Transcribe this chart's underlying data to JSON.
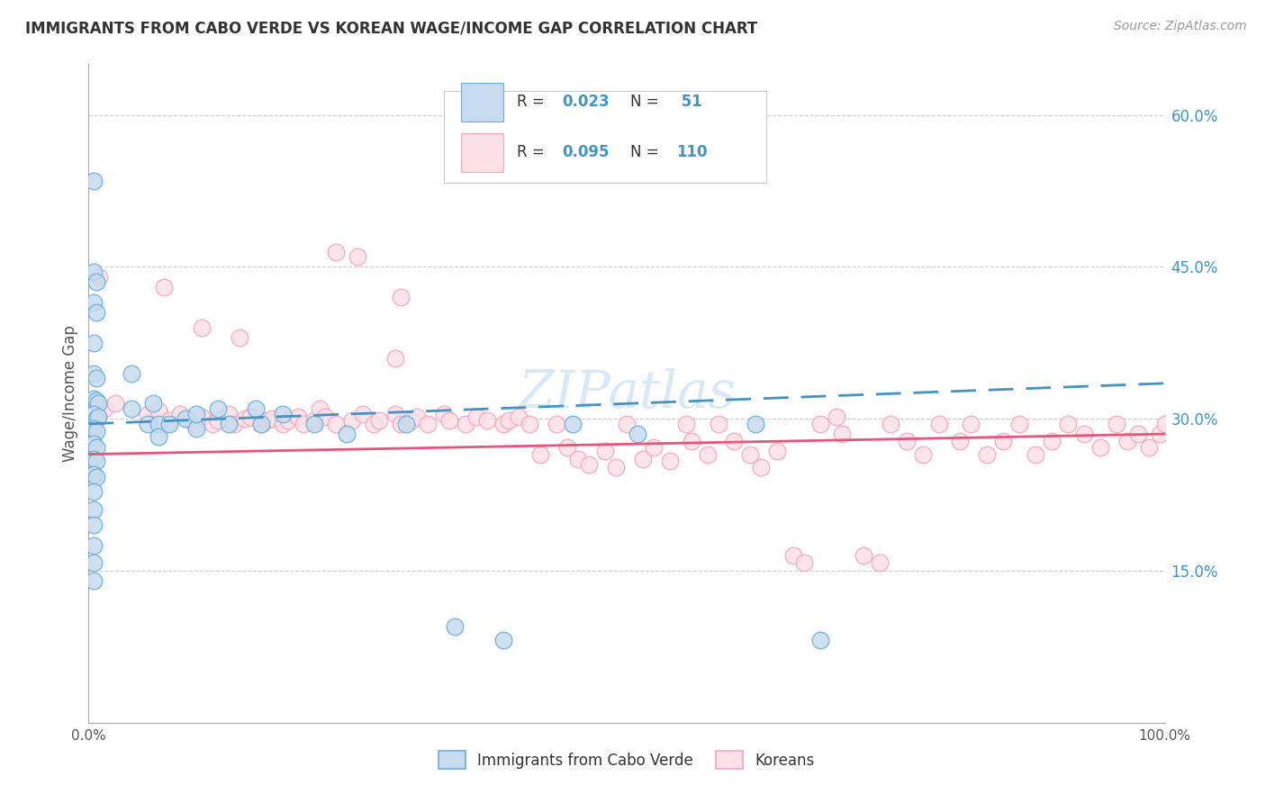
{
  "title": "IMMIGRANTS FROM CABO VERDE VS KOREAN WAGE/INCOME GAP CORRELATION CHART",
  "source": "Source: ZipAtlas.com",
  "ylabel": "Wage/Income Gap",
  "x_min": 0.0,
  "x_max": 1.0,
  "y_min": 0.0,
  "y_max": 0.65,
  "x_tick_labels": [
    "0.0%",
    "100.0%"
  ],
  "y_tick_labels_right": [
    "60.0%",
    "45.0%",
    "30.0%",
    "15.0%"
  ],
  "y_tick_values_right": [
    0.6,
    0.45,
    0.3,
    0.15
  ],
  "legend_label1": "Immigrants from Cabo Verde",
  "legend_label2": "Koreans",
  "blue_color": "#6baed6",
  "blue_fill": "#c6dbef",
  "pink_color": "#f4a6bc",
  "pink_fill": "#fce0e8",
  "blue_line_color": "#4393c3",
  "pink_line_color": "#e8547a",
  "watermark": "ZIPatlas",
  "blue_points": [
    [
      0.005,
      0.535
    ],
    [
      0.005,
      0.445
    ],
    [
      0.007,
      0.435
    ],
    [
      0.005,
      0.415
    ],
    [
      0.007,
      0.405
    ],
    [
      0.005,
      0.375
    ],
    [
      0.005,
      0.345
    ],
    [
      0.007,
      0.34
    ],
    [
      0.005,
      0.32
    ],
    [
      0.007,
      0.318
    ],
    [
      0.009,
      0.315
    ],
    [
      0.005,
      0.305
    ],
    [
      0.007,
      0.3
    ],
    [
      0.009,
      0.302
    ],
    [
      0.005,
      0.29
    ],
    [
      0.007,
      0.288
    ],
    [
      0.005,
      0.275
    ],
    [
      0.007,
      0.272
    ],
    [
      0.005,
      0.26
    ],
    [
      0.007,
      0.258
    ],
    [
      0.005,
      0.245
    ],
    [
      0.007,
      0.242
    ],
    [
      0.005,
      0.228
    ],
    [
      0.005,
      0.21
    ],
    [
      0.005,
      0.195
    ],
    [
      0.005,
      0.175
    ],
    [
      0.005,
      0.158
    ],
    [
      0.005,
      0.14
    ],
    [
      0.04,
      0.345
    ],
    [
      0.04,
      0.31
    ],
    [
      0.055,
      0.295
    ],
    [
      0.06,
      0.315
    ],
    [
      0.065,
      0.295
    ],
    [
      0.065,
      0.282
    ],
    [
      0.075,
      0.295
    ],
    [
      0.09,
      0.3
    ],
    [
      0.1,
      0.29
    ],
    [
      0.1,
      0.305
    ],
    [
      0.12,
      0.31
    ],
    [
      0.13,
      0.295
    ],
    [
      0.155,
      0.31
    ],
    [
      0.16,
      0.295
    ],
    [
      0.18,
      0.305
    ],
    [
      0.21,
      0.295
    ],
    [
      0.24,
      0.285
    ],
    [
      0.295,
      0.295
    ],
    [
      0.34,
      0.095
    ],
    [
      0.385,
      0.082
    ],
    [
      0.45,
      0.295
    ],
    [
      0.51,
      0.285
    ],
    [
      0.62,
      0.295
    ],
    [
      0.68,
      0.082
    ]
  ],
  "pink_points": [
    [
      0.01,
      0.44
    ],
    [
      0.07,
      0.43
    ],
    [
      0.105,
      0.39
    ],
    [
      0.23,
      0.465
    ],
    [
      0.25,
      0.46
    ],
    [
      0.29,
      0.42
    ],
    [
      0.14,
      0.38
    ],
    [
      0.285,
      0.36
    ],
    [
      0.015,
      0.31
    ],
    [
      0.025,
      0.315
    ],
    [
      0.055,
      0.305
    ],
    [
      0.065,
      0.308
    ],
    [
      0.07,
      0.295
    ],
    [
      0.075,
      0.298
    ],
    [
      0.085,
      0.305
    ],
    [
      0.095,
      0.298
    ],
    [
      0.1,
      0.295
    ],
    [
      0.105,
      0.302
    ],
    [
      0.115,
      0.295
    ],
    [
      0.12,
      0.298
    ],
    [
      0.13,
      0.305
    ],
    [
      0.135,
      0.295
    ],
    [
      0.145,
      0.3
    ],
    [
      0.15,
      0.302
    ],
    [
      0.16,
      0.295
    ],
    [
      0.165,
      0.298
    ],
    [
      0.17,
      0.3
    ],
    [
      0.18,
      0.295
    ],
    [
      0.185,
      0.298
    ],
    [
      0.195,
      0.302
    ],
    [
      0.2,
      0.295
    ],
    [
      0.21,
      0.298
    ],
    [
      0.215,
      0.31
    ],
    [
      0.22,
      0.302
    ],
    [
      0.23,
      0.295
    ],
    [
      0.245,
      0.298
    ],
    [
      0.255,
      0.305
    ],
    [
      0.265,
      0.295
    ],
    [
      0.27,
      0.298
    ],
    [
      0.285,
      0.305
    ],
    [
      0.29,
      0.295
    ],
    [
      0.3,
      0.298
    ],
    [
      0.305,
      0.302
    ],
    [
      0.315,
      0.295
    ],
    [
      0.33,
      0.305
    ],
    [
      0.335,
      0.298
    ],
    [
      0.35,
      0.295
    ],
    [
      0.36,
      0.302
    ],
    [
      0.37,
      0.298
    ],
    [
      0.385,
      0.295
    ],
    [
      0.39,
      0.298
    ],
    [
      0.4,
      0.302
    ],
    [
      0.41,
      0.295
    ],
    [
      0.42,
      0.265
    ],
    [
      0.435,
      0.295
    ],
    [
      0.445,
      0.272
    ],
    [
      0.455,
      0.26
    ],
    [
      0.465,
      0.255
    ],
    [
      0.48,
      0.268
    ],
    [
      0.49,
      0.252
    ],
    [
      0.5,
      0.295
    ],
    [
      0.515,
      0.26
    ],
    [
      0.525,
      0.272
    ],
    [
      0.54,
      0.258
    ],
    [
      0.555,
      0.295
    ],
    [
      0.56,
      0.278
    ],
    [
      0.575,
      0.265
    ],
    [
      0.585,
      0.295
    ],
    [
      0.6,
      0.278
    ],
    [
      0.615,
      0.265
    ],
    [
      0.625,
      0.252
    ],
    [
      0.64,
      0.268
    ],
    [
      0.655,
      0.165
    ],
    [
      0.665,
      0.158
    ],
    [
      0.68,
      0.295
    ],
    [
      0.695,
      0.302
    ],
    [
      0.7,
      0.285
    ],
    [
      0.72,
      0.165
    ],
    [
      0.735,
      0.158
    ],
    [
      0.745,
      0.295
    ],
    [
      0.76,
      0.278
    ],
    [
      0.775,
      0.265
    ],
    [
      0.79,
      0.295
    ],
    [
      0.81,
      0.278
    ],
    [
      0.82,
      0.295
    ],
    [
      0.835,
      0.265
    ],
    [
      0.85,
      0.278
    ],
    [
      0.865,
      0.295
    ],
    [
      0.88,
      0.265
    ],
    [
      0.895,
      0.278
    ],
    [
      0.91,
      0.295
    ],
    [
      0.925,
      0.285
    ],
    [
      0.94,
      0.272
    ],
    [
      0.955,
      0.295
    ],
    [
      0.965,
      0.278
    ],
    [
      0.975,
      0.285
    ],
    [
      0.985,
      0.272
    ],
    [
      0.995,
      0.285
    ],
    [
      1.0,
      0.295
    ]
  ]
}
